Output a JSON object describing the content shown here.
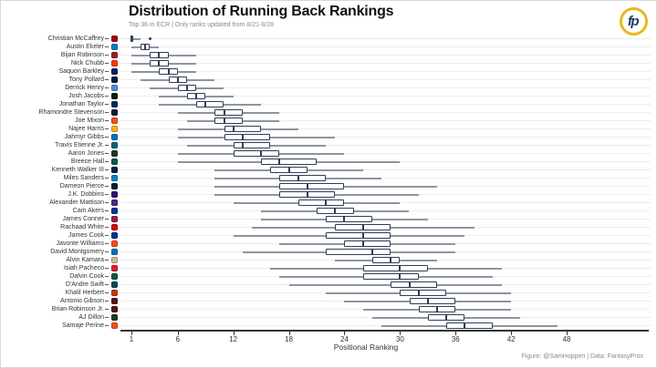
{
  "header": {
    "title": "Distribution of Running Back Rankings",
    "subtitle": "Top 36 in ECR | Only ranks updated from 8/21-8/28",
    "logo_text": "fp"
  },
  "footer": {
    "caption": "Figure: @SamHoppen | Data: FantasyPros"
  },
  "chart_data": {
    "type": "boxplot",
    "orientation": "horizontal",
    "title": "Distribution of Running Back Rankings",
    "subtitle": "Top 36 in ECR | Only ranks updated from 8/21-8/28",
    "xlabel": "Positional Ranking",
    "x_ticks": [
      1,
      6,
      12,
      18,
      24,
      30,
      36,
      42,
      48
    ],
    "xlim": [
      0,
      52
    ],
    "grid": "horizontal-only",
    "box_border_color": "#2f3f57",
    "box_fill_color": "#ffffff",
    "whisker_color": "#8e959e",
    "players": [
      {
        "name": "Christian McCaffrey",
        "team_color": "#aa0000",
        "min": 1,
        "q1": 1,
        "median": 1,
        "q3": 1,
        "max": 2,
        "outliers": [
          3
        ]
      },
      {
        "name": "Austin Ekeler",
        "team_color": "#0080c6",
        "min": 1,
        "q1": 2,
        "median": 2.5,
        "q3": 3,
        "max": 4
      },
      {
        "name": "Bijan Robinson",
        "team_color": "#a71930",
        "min": 1,
        "q1": 3,
        "median": 4,
        "q3": 5,
        "max": 8
      },
      {
        "name": "Nick Chubb",
        "team_color": "#ff3c00",
        "min": 1,
        "q1": 3,
        "median": 4,
        "q3": 5,
        "max": 8
      },
      {
        "name": "Saquon Barkley",
        "team_color": "#0b2265",
        "min": 1,
        "q1": 4,
        "median": 5,
        "q3": 6,
        "max": 8
      },
      {
        "name": "Tony Pollard",
        "team_color": "#041e42",
        "min": 2,
        "q1": 5,
        "median": 6,
        "q3": 7,
        "max": 10
      },
      {
        "name": "Derrick Henry",
        "team_color": "#4b92db",
        "min": 3,
        "q1": 6,
        "median": 7,
        "q3": 8,
        "max": 11
      },
      {
        "name": "Josh Jacobs",
        "team_color": "#1a1a1a",
        "min": 4,
        "q1": 7,
        "median": 8,
        "q3": 9,
        "max": 12
      },
      {
        "name": "Jonathan Taylor",
        "team_color": "#002c5f",
        "min": 4,
        "q1": 8,
        "median": 9,
        "q3": 11,
        "max": 15
      },
      {
        "name": "Rhamondre Stevenson",
        "team_color": "#002244",
        "min": 6,
        "q1": 10,
        "median": 11,
        "q3": 13,
        "max": 17
      },
      {
        "name": "Joe Mixon",
        "team_color": "#fb4f14",
        "min": 7,
        "q1": 10,
        "median": 11,
        "q3": 13,
        "max": 17
      },
      {
        "name": "Najee Harris",
        "team_color": "#ffb612",
        "min": 6,
        "q1": 11,
        "median": 12,
        "q3": 15,
        "max": 19
      },
      {
        "name": "Jahmyr Gibbs",
        "team_color": "#0076b6",
        "min": 6,
        "q1": 11,
        "median": 13,
        "q3": 16,
        "max": 23
      },
      {
        "name": "Travis Etienne Jr.",
        "team_color": "#006778",
        "min": 7,
        "q1": 12,
        "median": 13,
        "q3": 16,
        "max": 22
      },
      {
        "name": "Aaron Jones",
        "team_color": "#203731",
        "min": 6,
        "q1": 12,
        "median": 15,
        "q3": 17,
        "max": 24
      },
      {
        "name": "Breece Hall",
        "team_color": "#125740",
        "min": 6,
        "q1": 15,
        "median": 17,
        "q3": 21,
        "max": 30
      },
      {
        "name": "Kenneth Walker III",
        "team_color": "#002244",
        "min": 10,
        "q1": 16,
        "median": 18,
        "q3": 20,
        "max": 26
      },
      {
        "name": "Miles Sanders",
        "team_color": "#0085ca",
        "min": 10,
        "q1": 17,
        "median": 19,
        "q3": 22,
        "max": 28
      },
      {
        "name": "Dameon Pierce",
        "team_color": "#03202f",
        "min": 10,
        "q1": 17,
        "median": 20,
        "q3": 24,
        "max": 34
      },
      {
        "name": "J.K. Dobbins",
        "team_color": "#241773",
        "min": 10,
        "q1": 17,
        "median": 20,
        "q3": 23,
        "max": 32
      },
      {
        "name": "Alexander Mattison",
        "team_color": "#4f2683",
        "min": 12,
        "q1": 19,
        "median": 22,
        "q3": 24,
        "max": 30
      },
      {
        "name": "Cam Akers",
        "team_color": "#003594",
        "min": 15,
        "q1": 21,
        "median": 23,
        "q3": 25,
        "max": 31
      },
      {
        "name": "James Conner",
        "team_color": "#97233f",
        "min": 15,
        "q1": 22,
        "median": 24,
        "q3": 27,
        "max": 33
      },
      {
        "name": "Rachaad White",
        "team_color": "#d50a0a",
        "min": 14,
        "q1": 23,
        "median": 26,
        "q3": 29,
        "max": 38
      },
      {
        "name": "James Cook",
        "team_color": "#00338d",
        "min": 12,
        "q1": 22,
        "median": 26,
        "q3": 29,
        "max": 37
      },
      {
        "name": "Javonte Williams",
        "team_color": "#fb4f14",
        "min": 17,
        "q1": 24,
        "median": 26,
        "q3": 29,
        "max": 36
      },
      {
        "name": "David Montgomery",
        "team_color": "#0076b6",
        "min": 13,
        "q1": 22,
        "median": 27,
        "q3": 29,
        "max": 36
      },
      {
        "name": "Alvin Kamara",
        "team_color": "#d3bc8d",
        "min": 23,
        "q1": 27,
        "median": 29,
        "q3": 30,
        "max": 34
      },
      {
        "name": "Isiah Pacheco",
        "team_color": "#e31837",
        "min": 16,
        "q1": 26,
        "median": 30,
        "q3": 33,
        "max": 41
      },
      {
        "name": "Dalvin Cook",
        "team_color": "#125740",
        "min": 17,
        "q1": 26,
        "median": 30,
        "q3": 32,
        "max": 40
      },
      {
        "name": "D'Andre Swift",
        "team_color": "#004c54",
        "min": 18,
        "q1": 29,
        "median": 31,
        "q3": 34,
        "max": 41
      },
      {
        "name": "Khalil Herbert",
        "team_color": "#c83803",
        "min": 22,
        "q1": 30,
        "median": 32,
        "q3": 35,
        "max": 42
      },
      {
        "name": "Antonio Gibson",
        "team_color": "#5a1414",
        "min": 24,
        "q1": 31,
        "median": 33,
        "q3": 36,
        "max": 42
      },
      {
        "name": "Brian Robinson Jr.",
        "team_color": "#5a1414",
        "min": 26,
        "q1": 32,
        "median": 34,
        "q3": 36,
        "max": 42
      },
      {
        "name": "AJ Dillon",
        "team_color": "#203731",
        "min": 27,
        "q1": 33,
        "median": 35,
        "q3": 37,
        "max": 43
      },
      {
        "name": "Samaje Perine",
        "team_color": "#fb4f14",
        "min": 28,
        "q1": 35,
        "median": 37,
        "q3": 40,
        "max": 47
      }
    ]
  }
}
